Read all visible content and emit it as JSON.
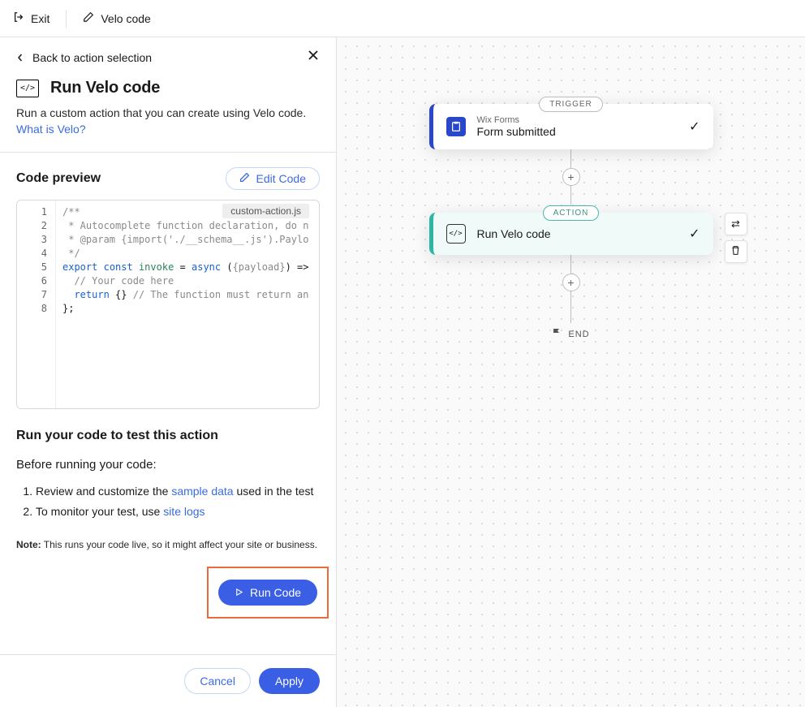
{
  "topbar": {
    "exit": "Exit",
    "velo": "Velo code"
  },
  "back": "Back to action selection",
  "page": {
    "title": "Run Velo code",
    "desc": "Run a custom action that you can create using Velo code. ",
    "link": "What is Velo?"
  },
  "codePreview": {
    "heading": "Code preview",
    "editBtn": "Edit Code",
    "file": "custom-action.js",
    "lines": [
      "/**",
      " * Autocomplete function declaration, do n",
      " * @param {import('./__schema__.js').Paylo",
      " */",
      "export const invoke = async ({payload}) =>",
      "  // Your code here",
      "  return {} // The function must return an",
      "};"
    ]
  },
  "test": {
    "heading": "Run your code to test this action",
    "before": "Before running your code:",
    "step1a": "Review and customize the ",
    "step1link": "sample data",
    "step1b": " used in the test",
    "step2a": "To monitor your test, use ",
    "step2link": "site logs",
    "noteLabel": "Note:",
    "noteText": " This runs your code live, so it might affect your site or business.",
    "runBtn": "Run Code"
  },
  "footer": {
    "cancel": "Cancel",
    "apply": "Apply"
  },
  "flow": {
    "triggerPill": "TRIGGER",
    "trigger": {
      "sub": "Wix Forms",
      "title": "Form submitted"
    },
    "actionPill": "ACTION",
    "action": {
      "title": "Run Velo code"
    },
    "end": "END"
  },
  "colors": {
    "primary": "#3a5fe5",
    "link": "#3a6bdf",
    "highlight": "#e86b3a",
    "triggerAccent": "#2a47c9",
    "actionAccent": "#2fb5a3"
  }
}
